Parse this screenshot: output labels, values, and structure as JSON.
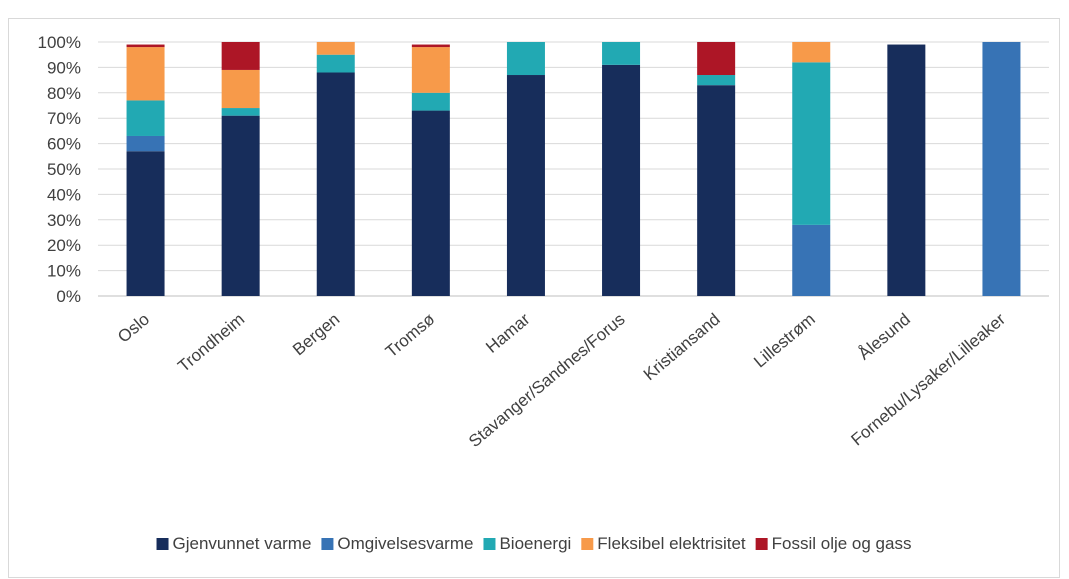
{
  "header": {
    "title_fragment": ""
  },
  "chart_data": {
    "type": "bar",
    "stacked": true,
    "title": "",
    "xlabel": "",
    "ylabel": "",
    "ylim": [
      0,
      100
    ],
    "y_ticks": [
      "0%",
      "10%",
      "20%",
      "30%",
      "40%",
      "50%",
      "60%",
      "70%",
      "80%",
      "90%",
      "100%"
    ],
    "grid": true,
    "legend_position": "bottom",
    "categories": [
      "Oslo",
      "Trondheim",
      "Bergen",
      "Tromsø",
      "Hamar",
      "Stavanger/Sandnes/Forus",
      "Kristiansand",
      "Lillestrøm",
      "Ålesund",
      "Fornebu/Lysaker/Lilleaker"
    ],
    "series": [
      {
        "name": "Gjenvunnet varme",
        "color": "#172d5b",
        "values": [
          57,
          71,
          88,
          73,
          87,
          91,
          83,
          0,
          99,
          0
        ]
      },
      {
        "name": "Omgivelsesvarme",
        "color": "#3773b5",
        "values": [
          6,
          0,
          0,
          0,
          0,
          0,
          0,
          28,
          0,
          100
        ]
      },
      {
        "name": "Bioenergi",
        "color": "#22a9b3",
        "values": [
          14,
          3,
          7,
          7,
          13,
          9,
          4,
          64,
          0,
          0
        ]
      },
      {
        "name": "Fleksibel elektrisitet",
        "color": "#f79a4a",
        "values": [
          21,
          15,
          5,
          18,
          0,
          0,
          0,
          8,
          0,
          0
        ]
      },
      {
        "name": "Fossil olje og gass",
        "color": "#ad1626",
        "values": [
          1,
          11,
          0,
          1,
          0,
          0,
          13,
          0,
          0,
          0
        ]
      }
    ]
  }
}
